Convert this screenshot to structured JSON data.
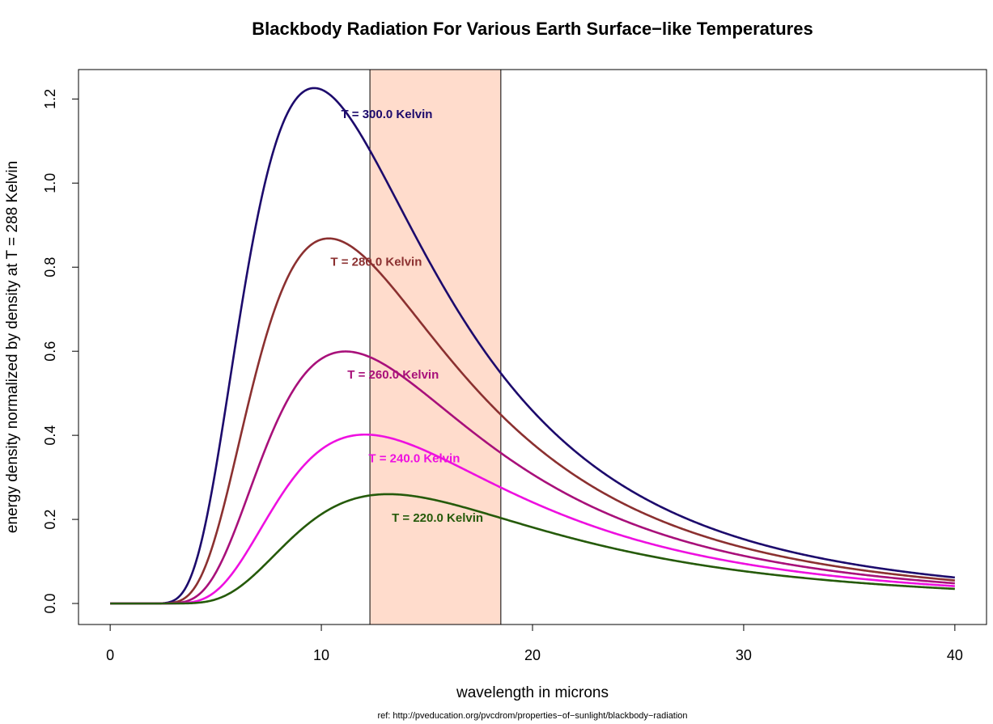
{
  "chart_data": {
    "type": "line",
    "title": "Blackbody Radiation For Various Earth Surface−like Temperatures",
    "xlabel": "wavelength in microns",
    "ylabel": "energy density normalized by density at T = 288 Kelvin",
    "footnote": "ref: http://pveducation.org/pvcdrom/properties−of−sunlight/blackbody−radiation",
    "xlim": [
      -1.5,
      41.5
    ],
    "ylim": [
      -0.05,
      1.27
    ],
    "x_ticks": [
      0,
      10,
      20,
      30,
      40
    ],
    "x_tick_labels": [
      "0",
      "10",
      "20",
      "30",
      "40"
    ],
    "y_ticks": [
      0.0,
      0.2,
      0.4,
      0.6,
      0.8,
      1.0,
      1.2
    ],
    "y_tick_labels": [
      "0.0",
      "0.2",
      "0.4",
      "0.6",
      "0.8",
      "1.0",
      "1.2"
    ],
    "grid": false,
    "x_range": [
      0,
      40
    ],
    "shaded_band": {
      "x_start": 12.3,
      "x_end": 18.5,
      "color": "#FFDCCC",
      "border_color": "#000000"
    },
    "normalization": {
      "peak_value": 1.226,
      "reference_temperature_K": 300
    },
    "series": [
      {
        "temperature_K": 300,
        "color": "#1C0A6C",
        "label": "T = 300.0 Kelvin",
        "label_x": 13.1,
        "label_y": 1.163
      },
      {
        "temperature_K": 280,
        "color": "#8B3030",
        "label": "T = 280.0 Kelvin",
        "label_x": 12.6,
        "label_y": 0.812
      },
      {
        "temperature_K": 260,
        "color": "#A8107A",
        "label": "T = 260.0 Kelvin",
        "label_x": 13.4,
        "label_y": 0.544
      },
      {
        "temperature_K": 240,
        "color": "#EE10E0",
        "label": "T = 240.0 Kelvin",
        "label_x": 14.4,
        "label_y": 0.344
      },
      {
        "temperature_K": 220,
        "color": "#255A0A",
        "label": "T = 220.0 Kelvin",
        "label_x": 15.5,
        "label_y": 0.203
      }
    ]
  }
}
